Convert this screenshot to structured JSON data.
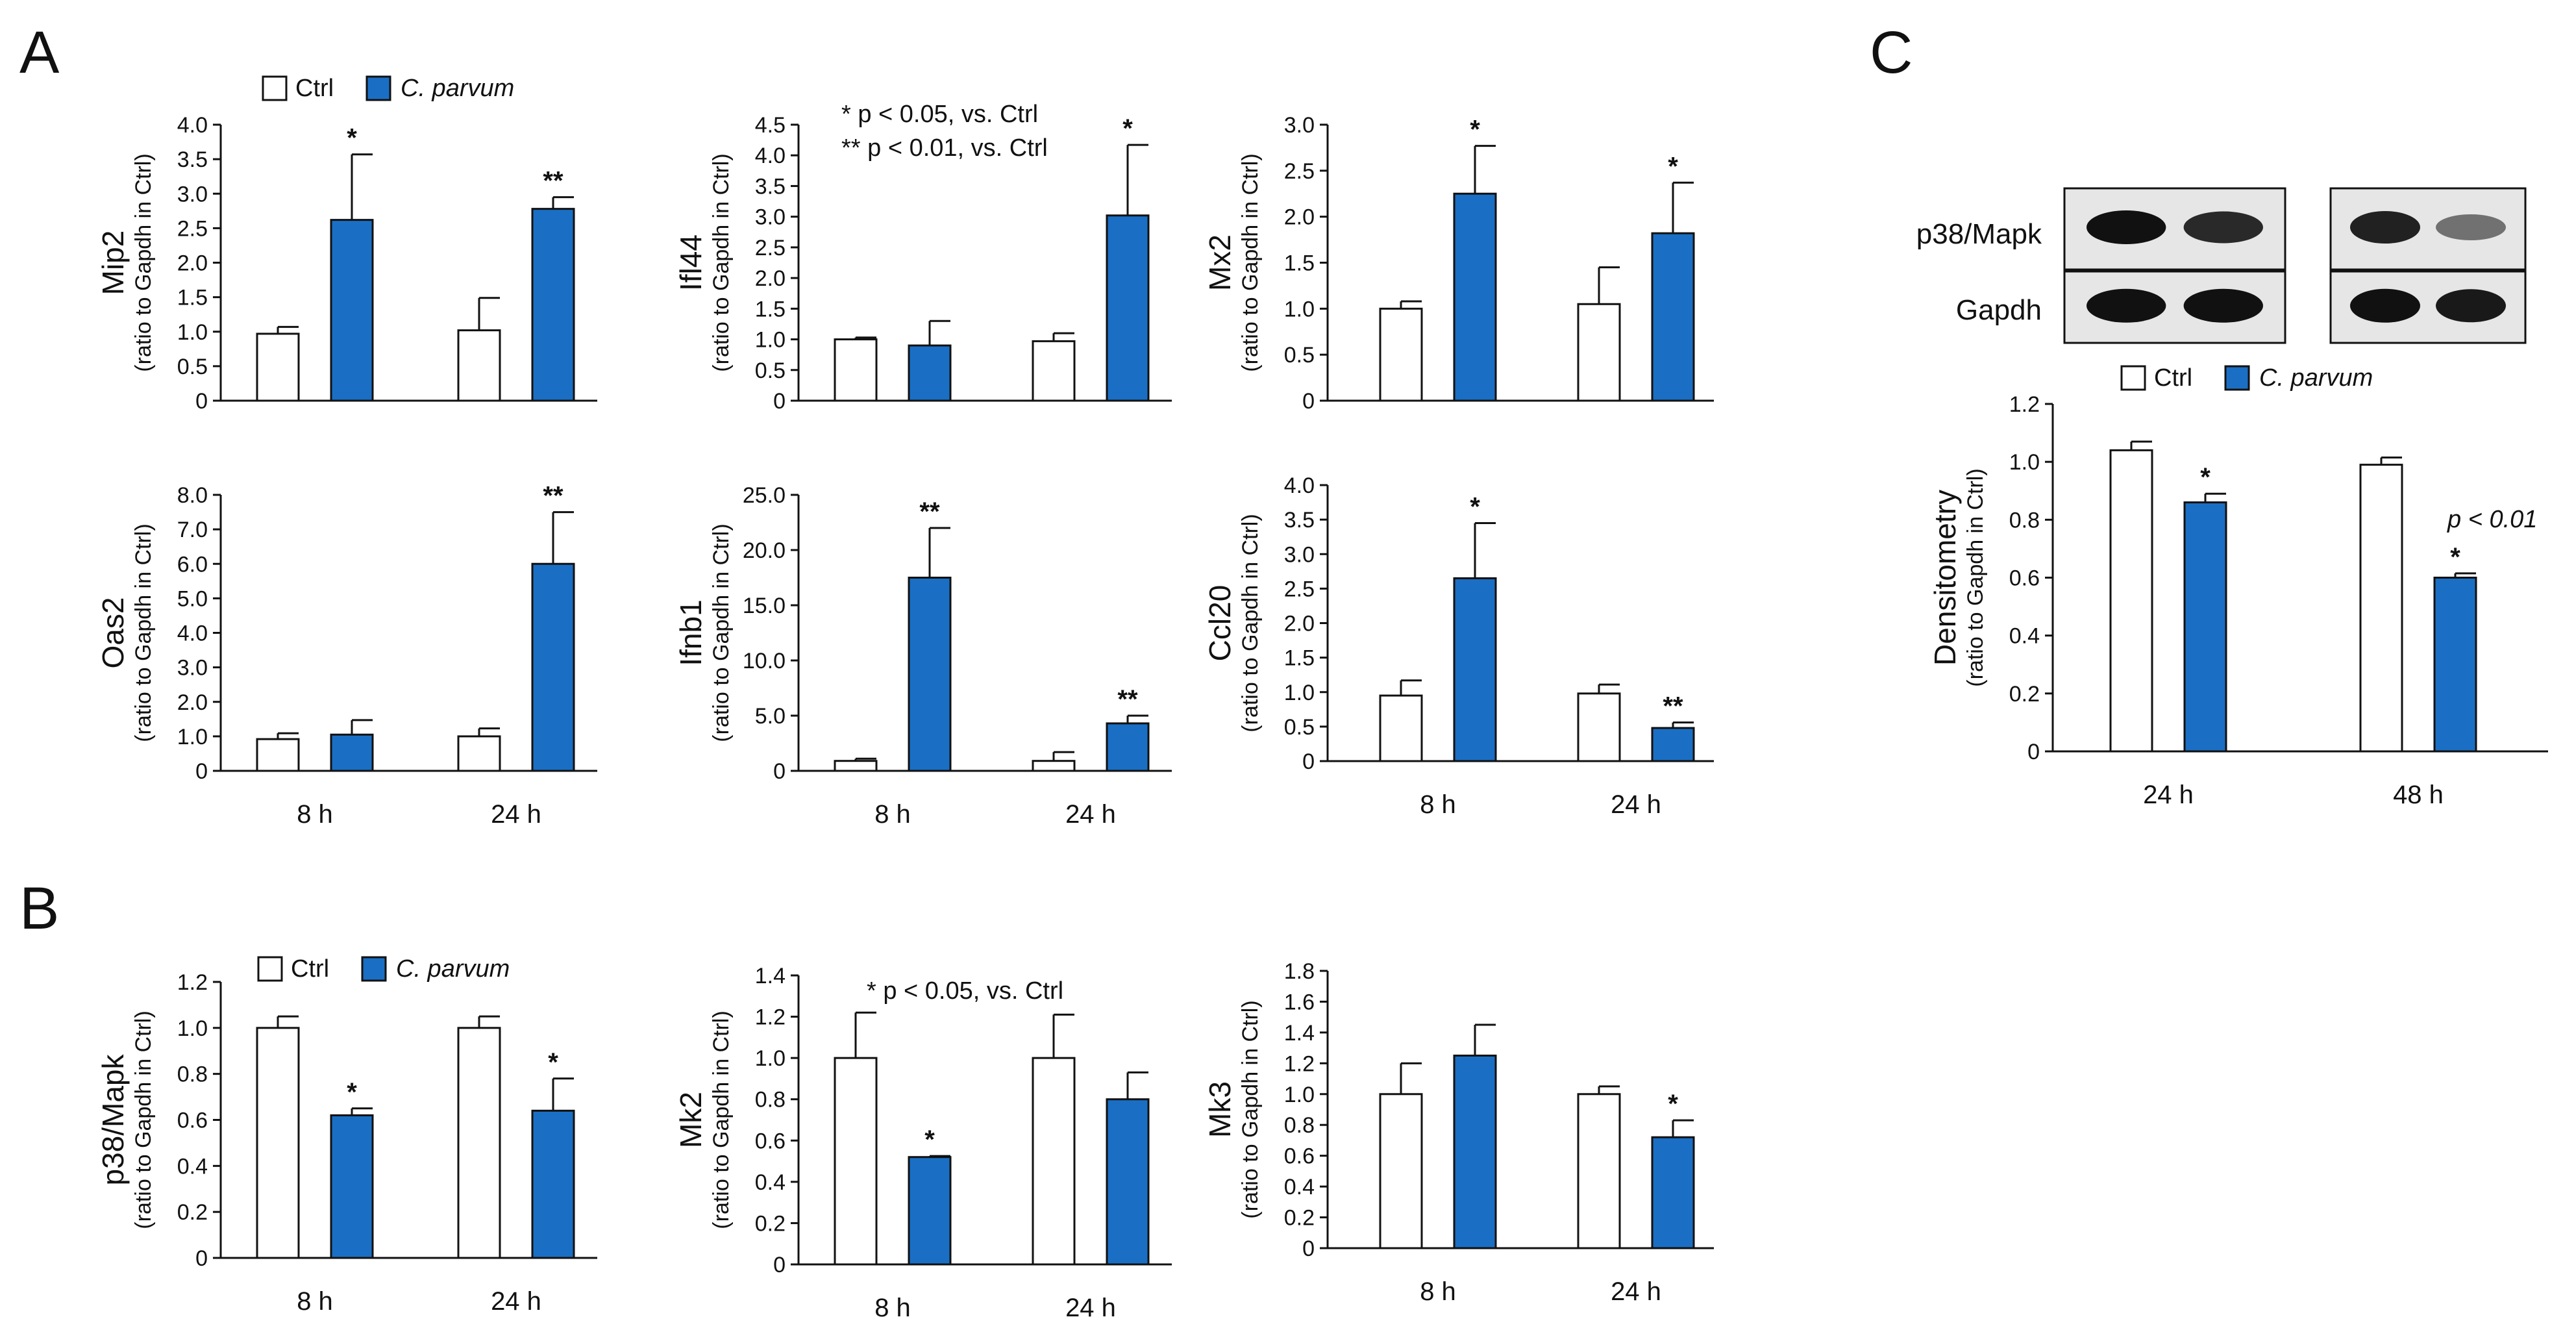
{
  "figure": {
    "panel_letters": [
      "A",
      "B",
      "C"
    ],
    "colors": {
      "ctrl": "#ffffff",
      "parvum": "#1a6fc4",
      "axis": "#111111",
      "band": "#111111",
      "blot_bg": "#e6e6e6"
    }
  },
  "chart_data": [
    {
      "id": "A-mip2",
      "type": "bar",
      "categories": [
        "",
        ""
      ],
      "ylabel_main": "Mip2",
      "ylabel_sub": "(ratio to Gapdh in Ctrl)",
      "ylim": [
        0,
        4.0
      ],
      "yticks": [
        "0",
        "0.5",
        "1.0",
        "1.5",
        "2.0",
        "2.5",
        "3.0",
        "3.5",
        "4.0"
      ],
      "legend": [
        "Ctrl",
        "C. parvum"
      ],
      "notes": [],
      "series": [
        {
          "name": "Ctrl",
          "values": [
            0.97,
            1.02
          ],
          "errors": [
            0.1,
            0.47
          ],
          "sig": [
            "",
            ""
          ]
        },
        {
          "name": "C. parvum",
          "values": [
            2.62,
            2.78
          ],
          "errors": [
            0.95,
            0.17
          ],
          "sig": [
            "*",
            "**"
          ]
        }
      ]
    },
    {
      "id": "A-ifi44",
      "type": "bar",
      "categories": [
        "",
        ""
      ],
      "ylabel_main": "Ifl44",
      "ylabel_sub": "(ratio to Gapdh in Ctrl)",
      "ylim": [
        0,
        4.5
      ],
      "yticks": [
        "0",
        "0.5",
        "1.0",
        "1.5",
        "2.0",
        "2.5",
        "3.0",
        "3.5",
        "4.0",
        "4.5"
      ],
      "legend": [],
      "notes": [
        "* p < 0.05, vs. Ctrl",
        "** p < 0.01, vs. Ctrl"
      ],
      "series": [
        {
          "name": "Ctrl",
          "values": [
            1.0,
            0.97
          ],
          "errors": [
            0.03,
            0.13
          ],
          "sig": [
            "",
            ""
          ]
        },
        {
          "name": "C. parvum",
          "values": [
            0.9,
            3.02
          ],
          "errors": [
            0.4,
            1.15
          ],
          "sig": [
            "",
            "*"
          ]
        }
      ]
    },
    {
      "id": "A-mx2",
      "type": "bar",
      "categories": [
        "",
        ""
      ],
      "ylabel_main": "Mx2",
      "ylabel_sub": "(ratio to Gapdh in Ctrl)",
      "ylim": [
        0,
        3.0
      ],
      "yticks": [
        "0",
        "0.5",
        "1.0",
        "1.5",
        "2.0",
        "2.5",
        "3.0"
      ],
      "legend": [],
      "notes": [],
      "series": [
        {
          "name": "Ctrl",
          "values": [
            1.0,
            1.05
          ],
          "errors": [
            0.08,
            0.4
          ],
          "sig": [
            "",
            ""
          ]
        },
        {
          "name": "C. parvum",
          "values": [
            2.25,
            1.82
          ],
          "errors": [
            0.52,
            0.55
          ],
          "sig": [
            "*",
            "*"
          ]
        }
      ]
    },
    {
      "id": "A-oas2",
      "type": "bar",
      "categories": [
        "8 h",
        "24 h"
      ],
      "ylabel_main": "Oas2",
      "ylabel_sub": "(ratio to Gapdh in Ctrl)",
      "ylim": [
        0,
        8.0
      ],
      "yticks": [
        "0",
        "1.0",
        "2.0",
        "3.0",
        "4.0",
        "5.0",
        "6.0",
        "7.0",
        "8.0"
      ],
      "legend": [],
      "notes": [],
      "series": [
        {
          "name": "Ctrl",
          "values": [
            0.92,
            1.0
          ],
          "errors": [
            0.17,
            0.23
          ],
          "sig": [
            "",
            ""
          ]
        },
        {
          "name": "C. parvum",
          "values": [
            1.05,
            6.0
          ],
          "errors": [
            0.42,
            1.5
          ],
          "sig": [
            "",
            "**"
          ]
        }
      ]
    },
    {
      "id": "A-ifnb1",
      "type": "bar",
      "categories": [
        "8 h",
        "24 h"
      ],
      "ylabel_main": "Ifnb1",
      "ylabel_sub": "(ratio to Gapdh in Ctrl)",
      "ylim": [
        0,
        25.0
      ],
      "yticks": [
        "0",
        "5.0",
        "10.0",
        "15.0",
        "20.0",
        "25.0"
      ],
      "legend": [],
      "notes": [],
      "series": [
        {
          "name": "Ctrl",
          "values": [
            0.9,
            0.9
          ],
          "errors": [
            0.2,
            0.8
          ],
          "sig": [
            "",
            ""
          ]
        },
        {
          "name": "C. parvum",
          "values": [
            17.5,
            4.3
          ],
          "errors": [
            4.5,
            0.7
          ],
          "sig": [
            "**",
            "**"
          ]
        }
      ]
    },
    {
      "id": "A-ccl20",
      "type": "bar",
      "categories": [
        "8 h",
        "24 h"
      ],
      "ylabel_main": "Ccl20",
      "ylabel_sub": "(ratio to Gapdh in Ctrl)",
      "ylim": [
        0,
        4.0
      ],
      "yticks": [
        "0",
        "0.5",
        "1.0",
        "1.5",
        "2.0",
        "2.5",
        "3.0",
        "3.5",
        "4.0"
      ],
      "legend": [],
      "notes": [],
      "series": [
        {
          "name": "Ctrl",
          "values": [
            0.95,
            0.98
          ],
          "errors": [
            0.22,
            0.13
          ],
          "sig": [
            "",
            ""
          ]
        },
        {
          "name": "C. parvum",
          "values": [
            2.65,
            0.48
          ],
          "errors": [
            0.8,
            0.08
          ],
          "sig": [
            "*",
            "**"
          ]
        }
      ]
    },
    {
      "id": "B-p38",
      "type": "bar",
      "categories": [
        "8 h",
        "24 h"
      ],
      "ylabel_main": "p38/Mapk",
      "ylabel_sub": "(ratio to Gapdh in Ctrl)",
      "ylim": [
        0,
        1.2
      ],
      "yticks": [
        "0",
        "0.2",
        "0.4",
        "0.6",
        "0.8",
        "1.0",
        "1.2"
      ],
      "legend": [
        "Ctrl",
        "C. parvum"
      ],
      "notes": [],
      "series": [
        {
          "name": "Ctrl",
          "values": [
            1.0,
            1.0
          ],
          "errors": [
            0.05,
            0.05
          ],
          "sig": [
            "",
            ""
          ]
        },
        {
          "name": "C. parvum",
          "values": [
            0.62,
            0.64
          ],
          "errors": [
            0.03,
            0.14
          ],
          "sig": [
            "*",
            "*"
          ]
        }
      ]
    },
    {
      "id": "B-mk2",
      "type": "bar",
      "categories": [
        "8 h",
        "24 h"
      ],
      "ylabel_main": "Mk2",
      "ylabel_sub": "(ratio to Gapdh in Ctrl)",
      "ylim": [
        0,
        1.4
      ],
      "yticks": [
        "0",
        "0.2",
        "0.4",
        "0.6",
        "0.8",
        "1.0",
        "1.2",
        "1.4"
      ],
      "legend": [],
      "notes": [
        "* p < 0.05, vs. Ctrl"
      ],
      "series": [
        {
          "name": "Ctrl",
          "values": [
            1.0,
            1.0
          ],
          "errors": [
            0.22,
            0.21
          ],
          "sig": [
            "",
            ""
          ]
        },
        {
          "name": "C. parvum",
          "values": [
            0.52,
            0.8
          ],
          "errors": [
            0.005,
            0.13
          ],
          "sig": [
            "*",
            ""
          ]
        }
      ]
    },
    {
      "id": "B-mk3",
      "type": "bar",
      "categories": [
        "8 h",
        "24 h"
      ],
      "ylabel_main": "Mk3",
      "ylabel_sub": "(ratio to Gapdh in Ctrl)",
      "ylim": [
        0,
        1.8
      ],
      "yticks": [
        "0",
        "0.2",
        "0.4",
        "0.6",
        "0.8",
        "1.0",
        "1.2",
        "1.4",
        "1.6",
        "1.8"
      ],
      "legend": [],
      "notes": [],
      "series": [
        {
          "name": "Ctrl",
          "values": [
            1.0,
            1.0
          ],
          "errors": [
            0.2,
            0.05
          ],
          "sig": [
            "",
            ""
          ]
        },
        {
          "name": "C. parvum",
          "values": [
            1.25,
            0.72
          ],
          "errors": [
            0.2,
            0.11
          ],
          "sig": [
            "",
            "*"
          ]
        }
      ]
    },
    {
      "id": "C-densitometry",
      "type": "bar",
      "categories": [
        "24 h",
        "48 h"
      ],
      "ylabel_main": "Densitometry",
      "ylabel_sub": "(ratio to Gapdh in Ctrl)",
      "ylim": [
        0,
        1.2
      ],
      "yticks": [
        "0",
        "0.2",
        "0.4",
        "0.6",
        "0.8",
        "1.0",
        "1.2"
      ],
      "legend": [
        "Ctrl",
        "C. parvum"
      ],
      "notes": [],
      "p_note": "p < 0.01",
      "series": [
        {
          "name": "Ctrl",
          "values": [
            1.04,
            0.99
          ],
          "errors": [
            0.03,
            0.025
          ],
          "sig": [
            "",
            ""
          ]
        },
        {
          "name": "C. parvum",
          "values": [
            0.86,
            0.6
          ],
          "errors": [
            0.03,
            0.015
          ],
          "sig": [
            "*",
            "*"
          ]
        }
      ]
    }
  ],
  "blot": {
    "rows": [
      "p38/Mapk",
      "Gapdh"
    ],
    "bands": {
      "p38_24h": [
        1.0,
        0.85
      ],
      "p38_48h": [
        0.9,
        0.4
      ],
      "gapdh_24h": [
        1.0,
        1.0
      ],
      "gapdh_48h": [
        1.0,
        0.95
      ]
    }
  }
}
